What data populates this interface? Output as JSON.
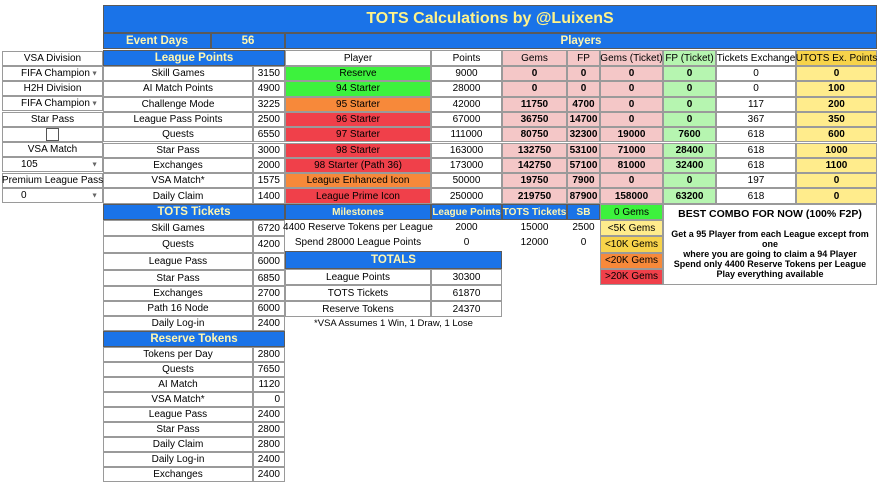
{
  "title": "TOTS Calculations by @LuixenS",
  "event_days": {
    "label": "Event Days",
    "value": "56"
  },
  "players_header": "Players",
  "settings": [
    {
      "label": "VSA Division",
      "value": "FIFA Champion"
    },
    {
      "label": "H2H Division",
      "value": "FIFA Champion"
    },
    {
      "label": "Star Pass",
      "value": ""
    },
    {
      "label": "VSA Match",
      "value": "105"
    },
    {
      "label": "Premium League Pass",
      "value": "0"
    }
  ],
  "league_points": {
    "header": "League Points",
    "rows": [
      {
        "label": "Skill Games",
        "value": "3150"
      },
      {
        "label": "AI Match Points",
        "value": "4900"
      },
      {
        "label": "Challenge Mode",
        "value": "3225"
      },
      {
        "label": "League Pass Points",
        "value": "2500"
      },
      {
        "label": "Quests",
        "value": "6550"
      },
      {
        "label": "Star Pass",
        "value": "3000"
      },
      {
        "label": "Exchanges",
        "value": "2000"
      },
      {
        "label": "VSA Match*",
        "value": "1575"
      },
      {
        "label": "Daily Claim",
        "value": "1400"
      }
    ]
  },
  "players": {
    "columns": [
      "Player",
      "Points",
      "Gems",
      "FP",
      "Gems (Ticket)",
      "FP (Ticket)",
      "Tickets Exchange",
      "UTOTS Ex. Points"
    ],
    "rows": [
      {
        "player": "Reserve",
        "points": "9000",
        "gems": "0",
        "fp": "0",
        "gems_t": "0",
        "fp_t": "0",
        "tickets": "0",
        "utots": "0"
      },
      {
        "player": "94 Starter",
        "points": "28000",
        "gems": "0",
        "fp": "0",
        "gems_t": "0",
        "fp_t": "0",
        "tickets": "0",
        "utots": "100"
      },
      {
        "player": "95 Starter",
        "points": "42000",
        "gems": "11750",
        "fp": "4700",
        "gems_t": "0",
        "fp_t": "0",
        "tickets": "117",
        "utots": "200"
      },
      {
        "player": "96 Starter",
        "points": "67000",
        "gems": "36750",
        "fp": "14700",
        "gems_t": "0",
        "fp_t": "0",
        "tickets": "367",
        "utots": "350"
      },
      {
        "player": "97 Starter",
        "points": "111000",
        "gems": "80750",
        "fp": "32300",
        "gems_t": "19000",
        "fp_t": "7600",
        "tickets": "618",
        "utots": "600"
      },
      {
        "player": "98 Starter",
        "points": "163000",
        "gems": "132750",
        "fp": "53100",
        "gems_t": "71000",
        "fp_t": "28400",
        "tickets": "618",
        "utots": "1000"
      },
      {
        "player": "98 Starter (Path 36)",
        "points": "173000",
        "gems": "142750",
        "fp": "57100",
        "gems_t": "81000",
        "fp_t": "32400",
        "tickets": "618",
        "utots": "1100"
      },
      {
        "player": "League Enhanced Icon",
        "points": "50000",
        "gems": "19750",
        "fp": "7900",
        "gems_t": "0",
        "fp_t": "0",
        "tickets": "197",
        "utots": "0"
      },
      {
        "player": "League Prime Icon",
        "points": "250000",
        "gems": "219750",
        "fp": "87900",
        "gems_t": "158000",
        "fp_t": "63200",
        "tickets": "618",
        "utots": "0"
      }
    ]
  },
  "tots_tickets": {
    "header": "TOTS Tickets",
    "rows": [
      {
        "label": "Skill Games",
        "value": "6720"
      },
      {
        "label": "Quests",
        "value": "4200"
      },
      {
        "label": "League Pass",
        "value": "6000"
      },
      {
        "label": "Star Pass",
        "value": "6850"
      },
      {
        "label": "Exchanges",
        "value": "2700"
      },
      {
        "label": "Path 16 Node",
        "value": "6000"
      },
      {
        "label": "Daily Log-in",
        "value": "2400"
      }
    ]
  },
  "milestones": {
    "columns": [
      "Milestones",
      "League Points",
      "TOTS Tickets",
      "SB"
    ],
    "rows": [
      {
        "label": "4400 Reserve Tokens per League",
        "lp": "2000",
        "tt": "15000",
        "sb": "2500"
      },
      {
        "label": "Spend 28000 League Points",
        "lp": "0",
        "tt": "12000",
        "sb": "0"
      }
    ]
  },
  "totals": {
    "header": "TOTALS",
    "rows": [
      {
        "label": "League Points",
        "value": "30300"
      },
      {
        "label": "TOTS Tickets",
        "value": "61870"
      },
      {
        "label": "Reserve Tokens",
        "value": "24370"
      }
    ]
  },
  "vsa_note": "*VSA Assumes 1 Win, 1 Draw, 1 Lose",
  "legend": [
    "0 Gems",
    "<5K Gems",
    "<10K Gems",
    "<20K Gems",
    ">20K Gems"
  ],
  "best_combo": {
    "title": "BEST COMBO FOR NOW (100% F2P)",
    "lines": [
      "Get a 95 Player from each League except from one",
      "where you are going to claim a 94 Player",
      "Spend only 4400 Reserve Tokens per League",
      "Play everything available"
    ]
  },
  "reserve_tokens": {
    "header": "Reserve Tokens",
    "rows": [
      {
        "label": "Tokens per Day",
        "value": "2800"
      },
      {
        "label": "Quests",
        "value": "7650"
      },
      {
        "label": "AI Match",
        "value": "1120"
      },
      {
        "label": "VSA Match*",
        "value": "0"
      },
      {
        "label": "League Pass",
        "value": "2400"
      },
      {
        "label": "Star Pass",
        "value": "2800"
      },
      {
        "label": "Daily Claim",
        "value": "2800"
      },
      {
        "label": "Daily Log-in",
        "value": "2400"
      },
      {
        "label": "Exchanges",
        "value": "2400"
      }
    ]
  },
  "colors": {
    "header": "#1a73e8",
    "header_text": "#fff38a",
    "green": "#3df23d",
    "yellow": "#f7d34a",
    "orange": "#f7893a",
    "red": "#f0404a",
    "pink": "#f4c7c7",
    "light_green": "#b6f5b0",
    "light_yellow": "#ffec8c"
  }
}
